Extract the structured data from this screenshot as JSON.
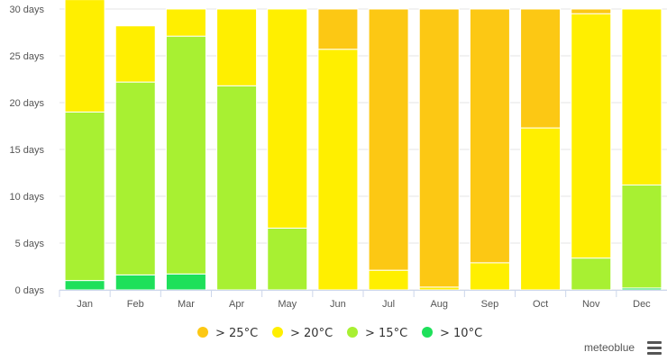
{
  "chart_data": {
    "type": "bar",
    "stacked": true,
    "categories": [
      "Jan",
      "Feb",
      "Mar",
      "Apr",
      "May",
      "Jun",
      "Jul",
      "Aug",
      "Sep",
      "Oct",
      "Nov",
      "Dec"
    ],
    "series": [
      {
        "name": "> 10°C",
        "color": "#1ee05a",
        "values": [
          1.0,
          1.6,
          1.7,
          0.0,
          0.0,
          0.0,
          0.0,
          0.0,
          0.0,
          0.0,
          0.0,
          0.2
        ]
      },
      {
        "name": "> 15°C",
        "color": "#a8f032",
        "values": [
          18.0,
          20.6,
          25.4,
          21.8,
          6.6,
          0.0,
          0.0,
          0.0,
          0.0,
          0.0,
          3.4,
          11.0
        ]
      },
      {
        "name": "> 20°C",
        "color": "#ffef00",
        "values": [
          12.0,
          6.0,
          2.9,
          8.2,
          23.4,
          25.7,
          2.1,
          0.3,
          2.9,
          17.3,
          26.1,
          18.8
        ]
      },
      {
        "name": "> 25°C",
        "color": "#fcc814",
        "values": [
          0.0,
          0.0,
          0.0,
          0.0,
          0.0,
          4.3,
          27.9,
          29.7,
          27.1,
          12.7,
          0.5,
          0.0
        ]
      }
    ],
    "legend_order": [
      "> 25°C",
      "> 20°C",
      "> 15°C",
      "> 10°C"
    ],
    "y_ticks": [
      "0 days",
      "5 days",
      "10 days",
      "15 days",
      "20 days",
      "25 days",
      "30 days"
    ],
    "ylim": [
      0,
      30
    ],
    "grid": true,
    "legend_position": "bottom-center"
  },
  "credit": "meteoblue",
  "menu_icon": "hamburger-menu-icon"
}
